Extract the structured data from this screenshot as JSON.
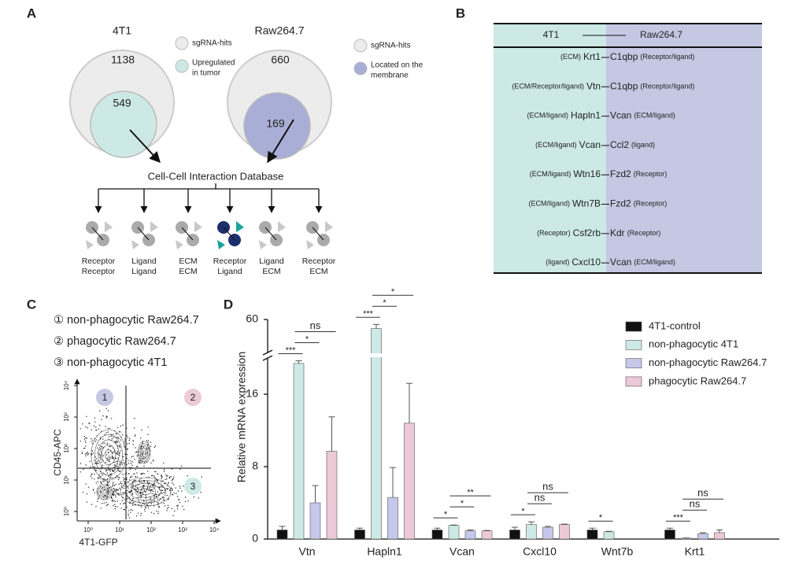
{
  "panel_labels": [
    "A",
    "B",
    "C",
    "D"
  ],
  "panel_a": {
    "left": {
      "title": "4T1",
      "outer": 1138,
      "inner": 549,
      "legend": [
        [
          "sgRNA-hits"
        ],
        [
          "Upregulated",
          "in tumor"
        ]
      ]
    },
    "right": {
      "title": "Raw264.7",
      "outer": 660,
      "inner": 169,
      "legend": [
        [
          "sgRNA-hits"
        ],
        [
          "Located on the",
          "membrane"
        ]
      ]
    },
    "database": "Cell-Cell Interaction Database",
    "interactions": [
      [
        "Receptor",
        "Receptor"
      ],
      [
        "Ligand",
        "Ligand"
      ],
      [
        "ECM",
        "ECM"
      ],
      [
        "Receptor",
        "Ligand"
      ],
      [
        "Ligand",
        "ECM"
      ],
      [
        "Receptor",
        "ECM"
      ]
    ]
  },
  "panel_b": {
    "headers": [
      "4T1",
      "Raw264.7"
    ],
    "rows": [
      {
        "left_note": "(ECM)",
        "left": "Krt1",
        "right": "C1qbp",
        "right_note": "(Receptor/ligand)"
      },
      {
        "left_note": "(ECM/Receptor/ligand)",
        "left": "Vtn",
        "right": "C1qbp",
        "right_note": "(Receptor/ligand)"
      },
      {
        "left_note": "(ECM/ligand)",
        "left": "Hapln1",
        "right": "Vcan",
        "right_note": "(ECM/ligand)"
      },
      {
        "left_note": "(ECM/ligand)",
        "left": "Vcan",
        "right": "Ccl2",
        "right_note": "(ligand)"
      },
      {
        "left_note": "(ECM/ligand)",
        "left": "Wtn16",
        "right": "Fzd2",
        "right_note": "(Receptor)"
      },
      {
        "left_note": "(ECM/ligand)",
        "left": "Wtn7B",
        "right": "Fzd2",
        "right_note": "(Receptor)"
      },
      {
        "left_note": "(Receptor)",
        "left": "Csf2rb",
        "right": "Kdr",
        "right_note": "(Receptor)"
      },
      {
        "left_note": "(ligand)",
        "left": "Cxcl10",
        "right": "Vcan",
        "right_note": "(ECM/ligand)"
      }
    ]
  },
  "panel_c": {
    "legend": [
      "① non-phagocytic Raw264.7",
      "② phagocytic Raw264.7",
      "③ non-phagocytic 4T1"
    ],
    "gates": [
      "1",
      "2",
      "3"
    ],
    "xlabel": "4T1-GFP",
    "ylabel": "CD45-APC",
    "xticks": [
      "10⁰",
      "10¹",
      "10²",
      "10³",
      "10⁴"
    ],
    "yticks": [
      "10⁰",
      "10¹",
      "10²",
      "10³",
      "10⁴"
    ]
  },
  "chart_data": {
    "type": "bar",
    "ylabel": "Relative mRNA expression",
    "categories": [
      "Vtn",
      "Hapln1",
      "Vcan",
      "Cxcl10",
      "Wnt7b",
      "Krt1"
    ],
    "ylim": [
      0,
      60
    ],
    "yticks": [
      0,
      8,
      16,
      60
    ],
    "ybreak": 20,
    "legend": "upper right",
    "series": [
      {
        "name": "4T1-control",
        "color": "#111111",
        "values": [
          1.0,
          1.0,
          1.0,
          1.0,
          1.0,
          1.0
        ],
        "errors": [
          0.4,
          0.2,
          0.2,
          0.3,
          0.2,
          0.2
        ]
      },
      {
        "name": "non-phagocytic 4T1",
        "color": "#cde9e6",
        "values": [
          19.4,
          49,
          1.5,
          1.6,
          0.8,
          0.1
        ],
        "errors": [
          0.3,
          5,
          0.05,
          0.3,
          0.05,
          0.02
        ]
      },
      {
        "name": "non-phagocytic Raw264.7",
        "color": "#c5c8ea",
        "values": [
          4.0,
          4.6,
          0.9,
          1.3,
          null,
          0.6
        ],
        "errors": [
          1.9,
          3.3,
          0.1,
          0.1,
          null,
          0.1
        ]
      },
      {
        "name": "phagocytic Raw264.7",
        "color": "#ecc9d7",
        "values": [
          9.7,
          12.8,
          0.9,
          1.6,
          null,
          0.7
        ],
        "errors": [
          3.8,
          4.4,
          0.05,
          0.05,
          null,
          0.3
        ]
      }
    ],
    "comparisons": [
      {
        "category": 0,
        "pair": [
          0,
          1
        ],
        "label": "***"
      },
      {
        "category": 0,
        "pair": [
          1,
          2
        ],
        "label": "*"
      },
      {
        "category": 0,
        "pair": [
          1,
          3
        ],
        "label": "ns"
      },
      {
        "category": 1,
        "pair": [
          0,
          1
        ],
        "label": "***"
      },
      {
        "category": 1,
        "pair": [
          1,
          2
        ],
        "label": "*"
      },
      {
        "category": 1,
        "pair": [
          1,
          3
        ],
        "label": "*"
      },
      {
        "category": 2,
        "pair": [
          0,
          1
        ],
        "label": "*"
      },
      {
        "category": 2,
        "pair": [
          1,
          2
        ],
        "label": "*"
      },
      {
        "category": 2,
        "pair": [
          1,
          3
        ],
        "label": "**"
      },
      {
        "category": 3,
        "pair": [
          0,
          1
        ],
        "label": "*"
      },
      {
        "category": 3,
        "pair": [
          1,
          2
        ],
        "label": "ns"
      },
      {
        "category": 3,
        "pair": [
          1,
          3
        ],
        "label": "ns"
      },
      {
        "category": 4,
        "pair": [
          0,
          1
        ],
        "label": "*"
      },
      {
        "category": 5,
        "pair": [
          0,
          1
        ],
        "label": "***"
      },
      {
        "category": 5,
        "pair": [
          1,
          2
        ],
        "label": "ns"
      },
      {
        "category": 5,
        "pair": [
          1,
          3
        ],
        "label": "ns"
      }
    ]
  }
}
